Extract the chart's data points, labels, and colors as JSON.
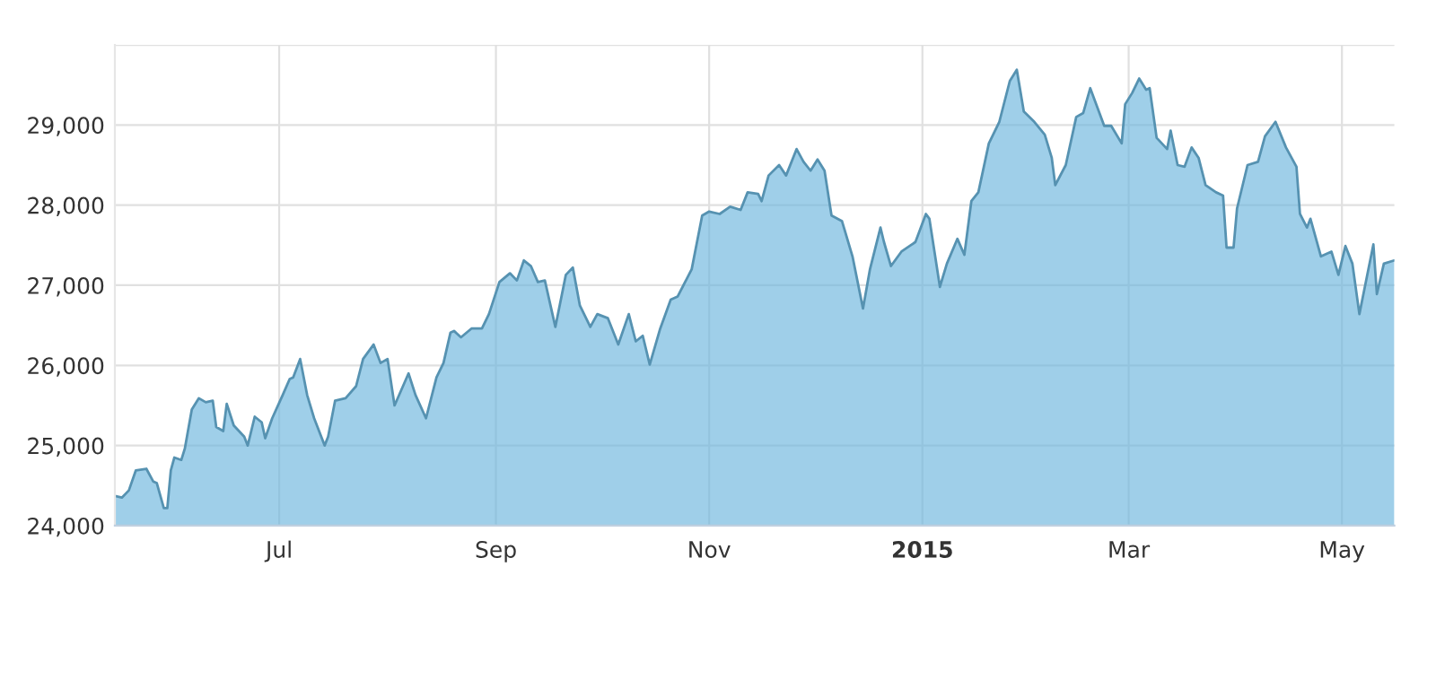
{
  "chart_data": {
    "type": "area",
    "x": [
      "2014-05-15",
      "2014-05-17",
      "2014-05-19",
      "2014-05-21",
      "2014-05-24",
      "2014-05-26",
      "2014-05-27",
      "2014-05-29",
      "2014-05-30",
      "2014-05-31",
      "2014-06-01",
      "2014-06-03",
      "2014-06-04",
      "2014-06-06",
      "2014-06-08",
      "2014-06-10",
      "2014-06-12",
      "2014-06-13",
      "2014-06-15",
      "2014-06-16",
      "2014-06-18",
      "2014-06-21",
      "2014-06-22",
      "2014-06-24",
      "2014-06-26",
      "2014-06-27",
      "2014-06-29",
      "2014-07-02",
      "2014-07-04",
      "2014-07-05",
      "2014-07-07",
      "2014-07-09",
      "2014-07-11",
      "2014-07-14",
      "2014-07-15",
      "2014-07-17",
      "2014-07-20",
      "2014-07-23",
      "2014-07-25",
      "2014-07-28",
      "2014-07-30",
      "2014-08-01",
      "2014-08-03",
      "2014-08-07",
      "2014-08-09",
      "2014-08-12",
      "2014-08-15",
      "2014-08-17",
      "2014-08-19",
      "2014-08-20",
      "2014-08-22",
      "2014-08-25",
      "2014-08-28",
      "2014-08-30",
      "2014-09-02",
      "2014-09-05",
      "2014-09-07",
      "2014-09-09",
      "2014-09-11",
      "2014-09-13",
      "2014-09-15",
      "2014-09-18",
      "2014-09-21",
      "2014-09-23",
      "2014-09-25",
      "2014-09-28",
      "2014-09-30",
      "2014-10-03",
      "2014-10-06",
      "2014-10-09",
      "2014-10-11",
      "2014-10-13",
      "2014-10-15",
      "2014-10-18",
      "2014-10-21",
      "2014-10-23",
      "2014-10-27",
      "2014-10-30",
      "2014-11-01",
      "2014-11-04",
      "2014-11-07",
      "2014-11-10",
      "2014-11-12",
      "2014-11-15",
      "2014-11-16",
      "2014-11-18",
      "2014-11-21",
      "2014-11-23",
      "2014-11-26",
      "2014-11-28",
      "2014-11-30",
      "2014-12-02",
      "2014-12-04",
      "2014-12-06",
      "2014-12-09",
      "2014-12-12",
      "2014-12-15",
      "2014-12-17",
      "2014-12-20",
      "2014-12-21",
      "2014-12-23",
      "2014-12-26",
      "2014-12-30",
      "2015-01-02",
      "2015-01-03",
      "2015-01-06",
      "2015-01-08",
      "2015-01-11",
      "2015-01-13",
      "2015-01-15",
      "2015-01-17",
      "2015-01-20",
      "2015-01-23",
      "2015-01-26",
      "2015-01-28",
      "2015-01-30",
      "2015-02-02",
      "2015-02-05",
      "2015-02-07",
      "2015-02-08",
      "2015-02-11",
      "2015-02-14",
      "2015-02-16",
      "2015-02-18",
      "2015-02-22",
      "2015-02-24",
      "2015-02-27",
      "2015-02-28",
      "2015-03-02",
      "2015-03-04",
      "2015-03-06",
      "2015-03-07",
      "2015-03-09",
      "2015-03-12",
      "2015-03-13",
      "2015-03-15",
      "2015-03-17",
      "2015-03-19",
      "2015-03-21",
      "2015-03-23",
      "2015-03-26",
      "2015-03-28",
      "2015-03-29",
      "2015-03-31",
      "2015-04-01",
      "2015-04-04",
      "2015-04-07",
      "2015-04-09",
      "2015-04-12",
      "2015-04-15",
      "2015-04-18",
      "2015-04-19",
      "2015-04-21",
      "2015-04-22",
      "2015-04-25",
      "2015-04-28",
      "2015-04-30",
      "2015-05-02",
      "2015-05-04",
      "2015-05-06",
      "2015-05-10",
      "2015-05-11",
      "2015-05-13",
      "2015-05-16"
    ],
    "series": [
      {
        "color": "#6cb6dd",
        "values": [
          24370,
          24350,
          24440,
          24690,
          24710,
          24550,
          24530,
          24220,
          24220,
          24690,
          24850,
          24820,
          24960,
          25450,
          25590,
          25540,
          25560,
          25230,
          25180,
          25520,
          25250,
          25110,
          25000,
          25360,
          25290,
          25090,
          25340,
          25630,
          25830,
          25850,
          26080,
          25630,
          25340,
          25000,
          25110,
          25560,
          25590,
          25740,
          26080,
          26260,
          26030,
          26080,
          25500,
          25900,
          25630,
          25340,
          25850,
          26030,
          26410,
          26430,
          26350,
          26460,
          26460,
          26640,
          27040,
          27150,
          27060,
          27310,
          27240,
          27040,
          27060,
          26480,
          27130,
          27220,
          26750,
          26480,
          26640,
          26590,
          26260,
          26640,
          26300,
          26370,
          26010,
          26460,
          26820,
          26860,
          27200,
          27870,
          27920,
          27890,
          27980,
          27940,
          28160,
          28140,
          28050,
          28370,
          28500,
          28370,
          28700,
          28540,
          28430,
          28570,
          28430,
          27870,
          27800,
          27360,
          26710,
          27200,
          27720,
          27540,
          27240,
          27420,
          27540,
          27890,
          27830,
          26980,
          27270,
          27580,
          27380,
          28050,
          28160,
          28770,
          29040,
          29550,
          29690,
          29170,
          29040,
          28880,
          28590,
          28250,
          28500,
          29100,
          29150,
          29460,
          28990,
          28990,
          28770,
          29260,
          29400,
          29580,
          29440,
          29460,
          28840,
          28700,
          28930,
          28500,
          28480,
          28720,
          28590,
          28250,
          28160,
          28120,
          27470,
          27470,
          27960,
          28500,
          28540,
          28860,
          29040,
          28720,
          28480,
          27890,
          27720,
          27830,
          27360,
          27420,
          27130,
          27490,
          27270,
          26640,
          27510,
          26890,
          27270,
          27310
        ]
      }
    ],
    "xlim": [
      "2014-05-15",
      "2015-05-16"
    ],
    "xticks": [
      {
        "value": "2014-07-01",
        "label": "Jul"
      },
      {
        "value": "2014-09-01",
        "label": "Sep"
      },
      {
        "value": "2014-11-01",
        "label": "Nov"
      },
      {
        "value": "2015-01-01",
        "label": "2015"
      },
      {
        "value": "2015-03-01",
        "label": "Mar"
      },
      {
        "value": "2015-05-01",
        "label": "May"
      }
    ],
    "ylim": [
      24000,
      30000
    ],
    "yticks": [
      {
        "value": 24000,
        "label": "24,000"
      },
      {
        "value": 25000,
        "label": "25,000"
      },
      {
        "value": 26000,
        "label": "26,000"
      },
      {
        "value": 27000,
        "label": "27,000"
      },
      {
        "value": 28000,
        "label": "28,000"
      },
      {
        "value": 29000,
        "label": "29,000"
      },
      {
        "value": 30000,
        "label": null
      }
    ],
    "grid": true
  }
}
